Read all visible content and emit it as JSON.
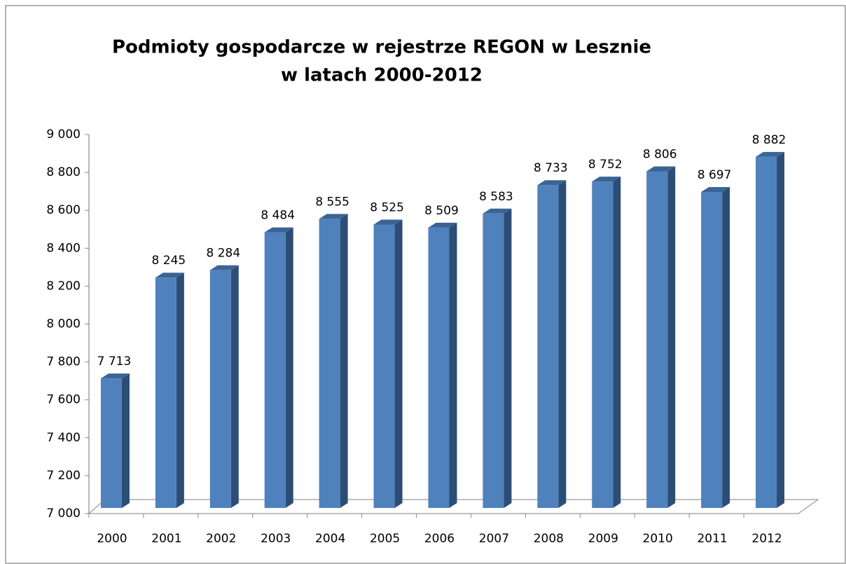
{
  "chart_data": {
    "type": "bar",
    "title": [
      "Podmioty gospodarcze w rejestrze REGON w Lesznie",
      "w latach 2000-2012"
    ],
    "categories": [
      "2000",
      "2001",
      "2002",
      "2003",
      "2004",
      "2005",
      "2006",
      "2007",
      "2008",
      "2009",
      "2010",
      "2011",
      "2012"
    ],
    "values": [
      7713,
      8245,
      8284,
      8484,
      8555,
      8525,
      8509,
      8583,
      8733,
      8752,
      8806,
      8697,
      8882
    ],
    "value_labels": [
      "7 713",
      "8 245",
      "8 284",
      "8 484",
      "8 555",
      "8 525",
      "8 509",
      "8 583",
      "8 733",
      "8 752",
      "8 806",
      "8 697",
      "8 882"
    ],
    "color": "#4f81bd",
    "ylim": [
      7000,
      9000
    ],
    "yticks": [
      {
        "value": 7000,
        "label": "7 000"
      },
      {
        "value": 7200,
        "label": "7 200"
      },
      {
        "value": 7400,
        "label": "7 400"
      },
      {
        "value": 7600,
        "label": "7 600"
      },
      {
        "value": 7800,
        "label": "7 800"
      },
      {
        "value": 8000,
        "label": "8 000"
      },
      {
        "value": 8200,
        "label": "8 200"
      },
      {
        "value": 8400,
        "label": "8 400"
      },
      {
        "value": 8600,
        "label": "8 600"
      },
      {
        "value": 8800,
        "label": "8 800"
      },
      {
        "value": 9000,
        "label": "9 000"
      }
    ],
    "grid": false
  }
}
